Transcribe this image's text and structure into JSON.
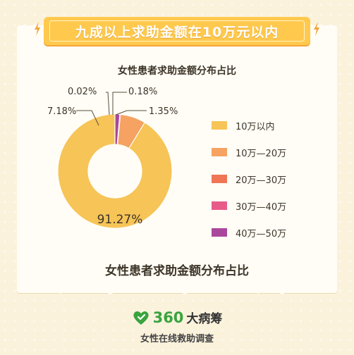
{
  "banner": {
    "title": "九成以上求助金额在10万元以内"
  },
  "chart_data": {
    "type": "pie",
    "subtype": "donut",
    "title": "女性患者求助金额分布占比",
    "caption": "女性患者求助金额分布占比",
    "categories": [
      "10万以内",
      "10万—20万",
      "20万—30万",
      "30万—40万",
      "40万—50万"
    ],
    "values": [
      91.27,
      7.18,
      0.02,
      0.18,
      1.35
    ],
    "value_labels": [
      "91.27%",
      "7.18%",
      "0.02%",
      "0.18%",
      "1.35%"
    ],
    "colors": [
      "#f6c457",
      "#f5a262",
      "#ef7555",
      "#e85a8a",
      "#a9479c"
    ],
    "legend_position": "right"
  },
  "footer": {
    "brand_number": "360",
    "brand_name": "大病筹",
    "subtitle": "女性在线救助调查"
  }
}
